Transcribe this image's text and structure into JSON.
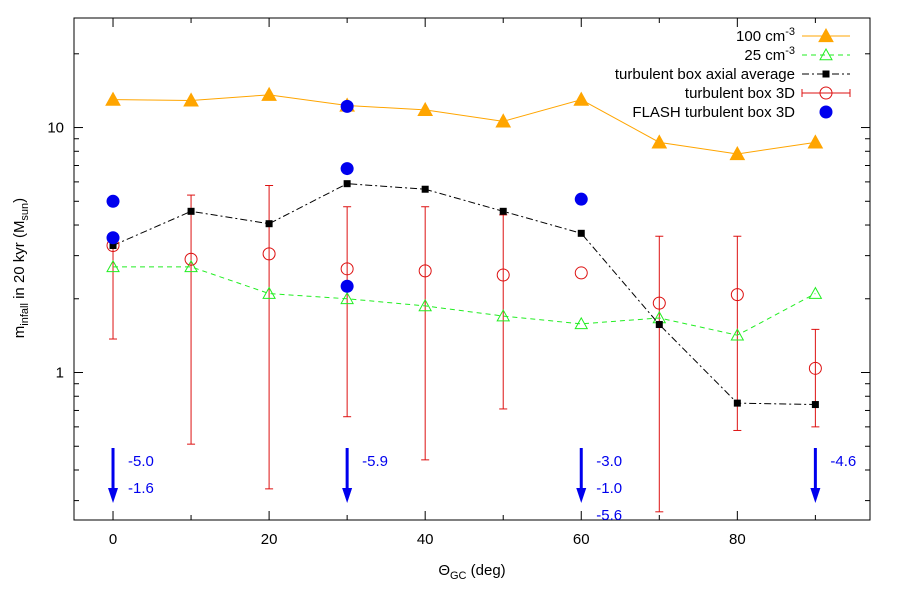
{
  "chart_data": {
    "type": "scatter",
    "xlabel": {
      "main": "Θ",
      "sub": "GC",
      "rest": " (deg)"
    },
    "ylabel": {
      "pre": "m",
      "sub": "infall",
      "mid": " in 20 kyr (M",
      "sub2": "sun",
      "post": ")"
    },
    "xlim": [
      -5,
      97
    ],
    "ylim": [
      0.25,
      28
    ],
    "yscale": "log",
    "xticks": [
      0,
      20,
      40,
      60,
      80
    ],
    "yticks": [
      1,
      10
    ],
    "grid": false,
    "legend_position": "top-right",
    "series": [
      {
        "name": "100 cm",
        "superscript": "-3",
        "color": "#ffa500",
        "style": "line-filled-triangle",
        "x": [
          0,
          10,
          20,
          30,
          40,
          50,
          60,
          70,
          80,
          90
        ],
        "y": [
          13.0,
          12.9,
          13.6,
          12.3,
          11.8,
          10.6,
          13.0,
          8.7,
          7.8,
          8.7
        ]
      },
      {
        "name": "25 cm",
        "superscript": "-3",
        "color": "#22ee22",
        "style": "dashed-open-triangle",
        "x": [
          0,
          10,
          20,
          30,
          40,
          50,
          60,
          70,
          80,
          90
        ],
        "y": [
          2.7,
          2.7,
          2.1,
          2.0,
          1.87,
          1.7,
          1.58,
          1.67,
          1.42,
          2.1
        ]
      },
      {
        "name": "turbulent box axial average",
        "superscript": "",
        "color": "#000000",
        "style": "dashdot-square",
        "x": [
          0,
          10,
          20,
          30,
          40,
          50,
          60,
          70,
          80,
          90
        ],
        "y": [
          3.3,
          4.55,
          4.05,
          5.9,
          5.6,
          4.55,
          3.7,
          1.57,
          0.75,
          0.74
        ]
      },
      {
        "name": "turbulent box 3D",
        "superscript": "",
        "color": "#dd1111",
        "style": "open-circle-errorbar",
        "x": [
          0,
          10,
          20,
          30,
          40,
          50,
          60,
          70,
          80,
          90
        ],
        "y": [
          3.3,
          2.9,
          3.05,
          2.65,
          2.6,
          2.5,
          2.55,
          1.92,
          2.08,
          1.04
        ],
        "ylow": [
          1.37,
          0.51,
          0.335,
          0.66,
          0.44,
          0.71,
          null,
          0.27,
          0.58,
          0.6
        ],
        "yhigh": [
          null,
          5.3,
          5.8,
          4.75,
          4.75,
          4.4,
          null,
          3.6,
          3.6,
          1.5
        ]
      },
      {
        "name": "FLASH turbulent box 3D",
        "superscript": "",
        "color": "#0000ee",
        "style": "filled-circle",
        "x": [
          0,
          0,
          30,
          30,
          30,
          60
        ],
        "y": [
          5.0,
          3.55,
          12.2,
          6.8,
          2.25,
          5.1
        ]
      }
    ],
    "annotations": [
      {
        "x": 0,
        "labels": [
          "-5.0",
          "-1.6"
        ]
      },
      {
        "x": 30,
        "labels": [
          "-5.9"
        ]
      },
      {
        "x": 60,
        "labels": [
          "-3.0",
          "-1.0",
          "-5.6"
        ]
      },
      {
        "x": 90,
        "labels": [
          "-4.6"
        ]
      }
    ],
    "annotation_color": "#0000ee"
  }
}
